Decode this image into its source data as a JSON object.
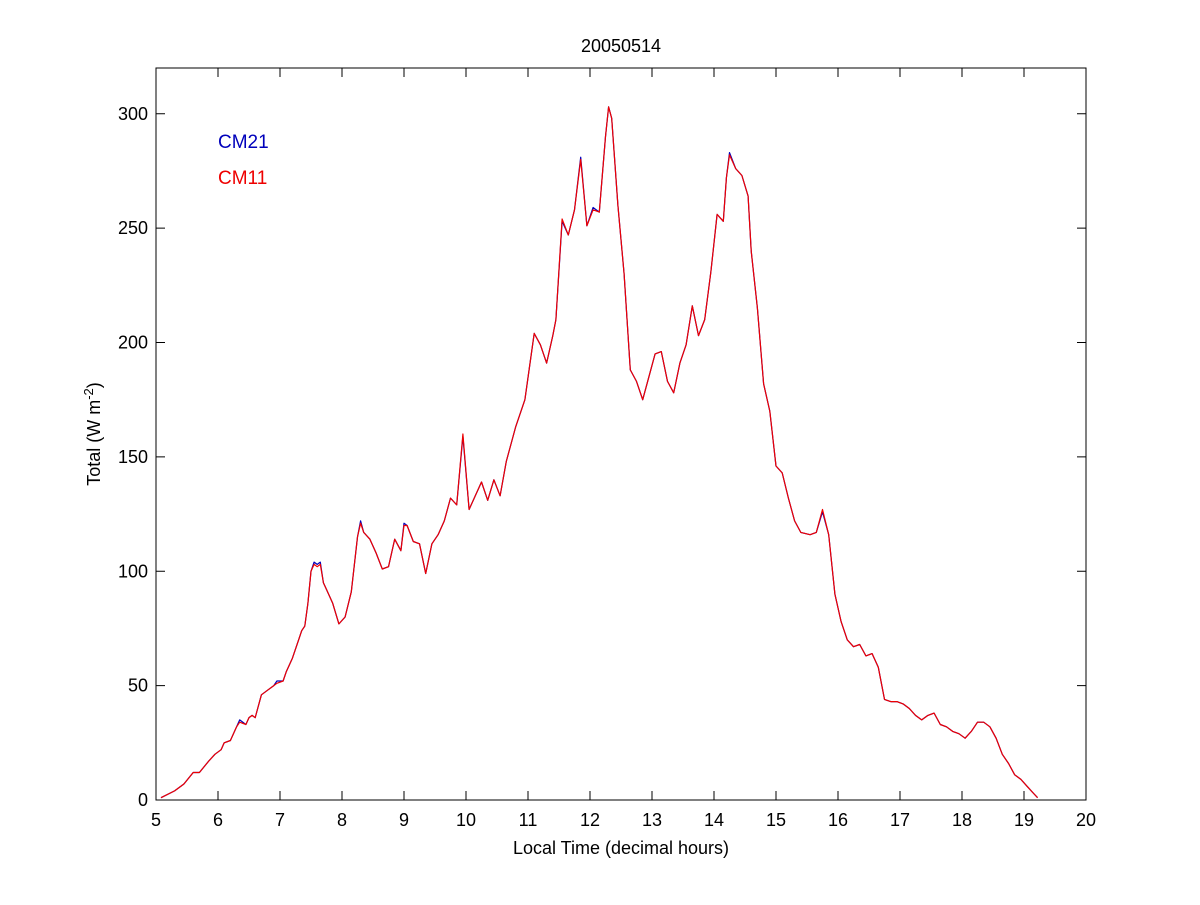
{
  "chart_data": {
    "type": "line",
    "title": "20050514",
    "xlabel": "Local Time (decimal hours)",
    "ylabel": {
      "prefix": "Total (W m",
      "superscript": "-2",
      "suffix": ")"
    },
    "xlim": [
      5,
      20
    ],
    "ylim": [
      0,
      320
    ],
    "xticks": [
      5,
      6,
      7,
      8,
      9,
      10,
      11,
      12,
      13,
      14,
      15,
      16,
      17,
      18,
      19,
      20
    ],
    "yticks": [
      0,
      50,
      100,
      150,
      200,
      250,
      300
    ],
    "legend_position": "top-left",
    "grid": false,
    "series": [
      {
        "name": "CM21",
        "color": "#0000bb",
        "points": [
          [
            5.08,
            1
          ],
          [
            5.3,
            4
          ],
          [
            5.45,
            7
          ],
          [
            5.6,
            12
          ],
          [
            5.7,
            12
          ],
          [
            5.85,
            17
          ],
          [
            5.95,
            20
          ],
          [
            6.05,
            22
          ],
          [
            6.1,
            25
          ],
          [
            6.2,
            26
          ],
          [
            6.3,
            32
          ],
          [
            6.35,
            35
          ],
          [
            6.45,
            33
          ],
          [
            6.5,
            36
          ],
          [
            6.55,
            37
          ],
          [
            6.6,
            36
          ],
          [
            6.7,
            46
          ],
          [
            6.8,
            48
          ],
          [
            6.9,
            50
          ],
          [
            6.95,
            52
          ],
          [
            7.05,
            52
          ],
          [
            7.1,
            56
          ],
          [
            7.2,
            62
          ],
          [
            7.3,
            70
          ],
          [
            7.35,
            74
          ],
          [
            7.4,
            76
          ],
          [
            7.45,
            86
          ],
          [
            7.5,
            100
          ],
          [
            7.55,
            104
          ],
          [
            7.6,
            103
          ],
          [
            7.65,
            104
          ],
          [
            7.7,
            95
          ],
          [
            7.75,
            92
          ],
          [
            7.85,
            86
          ],
          [
            7.95,
            77
          ],
          [
            8.05,
            80
          ],
          [
            8.15,
            91
          ],
          [
            8.25,
            115
          ],
          [
            8.3,
            122
          ],
          [
            8.35,
            117
          ],
          [
            8.45,
            114
          ],
          [
            8.55,
            108
          ],
          [
            8.65,
            101
          ],
          [
            8.75,
            102
          ],
          [
            8.85,
            114
          ],
          [
            8.95,
            109
          ],
          [
            9.0,
            121
          ],
          [
            9.05,
            120
          ],
          [
            9.15,
            113
          ],
          [
            9.25,
            112
          ],
          [
            9.35,
            99
          ],
          [
            9.45,
            112
          ],
          [
            9.55,
            116
          ],
          [
            9.65,
            122
          ],
          [
            9.75,
            132
          ],
          [
            9.85,
            129
          ],
          [
            9.95,
            159
          ],
          [
            10.05,
            127
          ],
          [
            10.15,
            133
          ],
          [
            10.25,
            139
          ],
          [
            10.35,
            131
          ],
          [
            10.45,
            140
          ],
          [
            10.55,
            133
          ],
          [
            10.65,
            148
          ],
          [
            10.8,
            163
          ],
          [
            10.95,
            175
          ],
          [
            11.1,
            204
          ],
          [
            11.2,
            199
          ],
          [
            11.3,
            191
          ],
          [
            11.4,
            203
          ],
          [
            11.45,
            210
          ],
          [
            11.55,
            253
          ],
          [
            11.65,
            247
          ],
          [
            11.75,
            258
          ],
          [
            11.85,
            281
          ],
          [
            11.95,
            251
          ],
          [
            12.05,
            259
          ],
          [
            12.15,
            257
          ],
          [
            12.25,
            290
          ],
          [
            12.3,
            303
          ],
          [
            12.35,
            298
          ],
          [
            12.45,
            260
          ],
          [
            12.55,
            230
          ],
          [
            12.65,
            188
          ],
          [
            12.75,
            183
          ],
          [
            12.85,
            175
          ],
          [
            12.95,
            185
          ],
          [
            13.05,
            195
          ],
          [
            13.15,
            196
          ],
          [
            13.25,
            183
          ],
          [
            13.35,
            178
          ],
          [
            13.45,
            191
          ],
          [
            13.55,
            199
          ],
          [
            13.65,
            216
          ],
          [
            13.75,
            203
          ],
          [
            13.85,
            210
          ],
          [
            13.95,
            231
          ],
          [
            14.05,
            256
          ],
          [
            14.15,
            253
          ],
          [
            14.2,
            272
          ],
          [
            14.25,
            283
          ],
          [
            14.35,
            276
          ],
          [
            14.45,
            273
          ],
          [
            14.55,
            264
          ],
          [
            14.6,
            240
          ],
          [
            14.7,
            215
          ],
          [
            14.8,
            182
          ],
          [
            14.9,
            170
          ],
          [
            15.0,
            146
          ],
          [
            15.1,
            143
          ],
          [
            15.2,
            132
          ],
          [
            15.3,
            122
          ],
          [
            15.4,
            117
          ],
          [
            15.55,
            116
          ],
          [
            15.65,
            117
          ],
          [
            15.75,
            126
          ],
          [
            15.85,
            116
          ],
          [
            15.95,
            90
          ],
          [
            16.05,
            78
          ],
          [
            16.15,
            70
          ],
          [
            16.25,
            67
          ],
          [
            16.35,
            68
          ],
          [
            16.45,
            63
          ],
          [
            16.55,
            64
          ],
          [
            16.65,
            58
          ],
          [
            16.75,
            44
          ],
          [
            16.85,
            43
          ],
          [
            16.95,
            43
          ],
          [
            17.05,
            42
          ],
          [
            17.15,
            40
          ],
          [
            17.25,
            37
          ],
          [
            17.35,
            35
          ],
          [
            17.45,
            37
          ],
          [
            17.55,
            38
          ],
          [
            17.65,
            33
          ],
          [
            17.75,
            32
          ],
          [
            17.85,
            30
          ],
          [
            17.95,
            29
          ],
          [
            18.05,
            27
          ],
          [
            18.15,
            30
          ],
          [
            18.25,
            34
          ],
          [
            18.35,
            34
          ],
          [
            18.45,
            32
          ],
          [
            18.55,
            27
          ],
          [
            18.65,
            20
          ],
          [
            18.75,
            16
          ],
          [
            18.85,
            11
          ],
          [
            18.95,
            9
          ],
          [
            19.05,
            6
          ],
          [
            19.15,
            3
          ],
          [
            19.22,
            1
          ]
        ]
      },
      {
        "name": "CM11",
        "color": "#ee0000",
        "points": [
          [
            5.08,
            1
          ],
          [
            5.3,
            4
          ],
          [
            5.45,
            7
          ],
          [
            5.6,
            12
          ],
          [
            5.7,
            12
          ],
          [
            5.85,
            17
          ],
          [
            5.95,
            20
          ],
          [
            6.05,
            22
          ],
          [
            6.1,
            25
          ],
          [
            6.2,
            26
          ],
          [
            6.3,
            32
          ],
          [
            6.35,
            34
          ],
          [
            6.45,
            33
          ],
          [
            6.5,
            36
          ],
          [
            6.55,
            37
          ],
          [
            6.6,
            36
          ],
          [
            6.7,
            46
          ],
          [
            6.8,
            48
          ],
          [
            6.9,
            50
          ],
          [
            6.95,
            51
          ],
          [
            7.05,
            52
          ],
          [
            7.1,
            56
          ],
          [
            7.2,
            62
          ],
          [
            7.3,
            70
          ],
          [
            7.35,
            74
          ],
          [
            7.4,
            76
          ],
          [
            7.45,
            86
          ],
          [
            7.5,
            100
          ],
          [
            7.55,
            103
          ],
          [
            7.6,
            102
          ],
          [
            7.65,
            103
          ],
          [
            7.7,
            95
          ],
          [
            7.75,
            92
          ],
          [
            7.85,
            86
          ],
          [
            7.95,
            77
          ],
          [
            8.05,
            80
          ],
          [
            8.15,
            91
          ],
          [
            8.25,
            115
          ],
          [
            8.3,
            121
          ],
          [
            8.35,
            117
          ],
          [
            8.45,
            114
          ],
          [
            8.55,
            108
          ],
          [
            8.65,
            101
          ],
          [
            8.75,
            102
          ],
          [
            8.85,
            114
          ],
          [
            8.95,
            109
          ],
          [
            9.0,
            120
          ],
          [
            9.05,
            120
          ],
          [
            9.15,
            113
          ],
          [
            9.25,
            112
          ],
          [
            9.35,
            99
          ],
          [
            9.45,
            112
          ],
          [
            9.55,
            116
          ],
          [
            9.65,
            122
          ],
          [
            9.75,
            132
          ],
          [
            9.85,
            129
          ],
          [
            9.95,
            160
          ],
          [
            10.05,
            127
          ],
          [
            10.15,
            133
          ],
          [
            10.25,
            139
          ],
          [
            10.35,
            131
          ],
          [
            10.45,
            140
          ],
          [
            10.55,
            133
          ],
          [
            10.65,
            148
          ],
          [
            10.8,
            163
          ],
          [
            10.95,
            175
          ],
          [
            11.1,
            204
          ],
          [
            11.2,
            199
          ],
          [
            11.3,
            191
          ],
          [
            11.4,
            203
          ],
          [
            11.45,
            210
          ],
          [
            11.55,
            254
          ],
          [
            11.65,
            247
          ],
          [
            11.75,
            258
          ],
          [
            11.85,
            280
          ],
          [
            11.95,
            251
          ],
          [
            12.05,
            258
          ],
          [
            12.15,
            257
          ],
          [
            12.25,
            290
          ],
          [
            12.3,
            303
          ],
          [
            12.35,
            298
          ],
          [
            12.45,
            260
          ],
          [
            12.55,
            230
          ],
          [
            12.65,
            188
          ],
          [
            12.75,
            183
          ],
          [
            12.85,
            175
          ],
          [
            12.95,
            185
          ],
          [
            13.05,
            195
          ],
          [
            13.15,
            196
          ],
          [
            13.25,
            183
          ],
          [
            13.35,
            178
          ],
          [
            13.45,
            191
          ],
          [
            13.55,
            199
          ],
          [
            13.65,
            216
          ],
          [
            13.75,
            203
          ],
          [
            13.85,
            210
          ],
          [
            13.95,
            231
          ],
          [
            14.05,
            256
          ],
          [
            14.15,
            253
          ],
          [
            14.2,
            272
          ],
          [
            14.25,
            282
          ],
          [
            14.35,
            276
          ],
          [
            14.45,
            273
          ],
          [
            14.55,
            264
          ],
          [
            14.6,
            240
          ],
          [
            14.7,
            215
          ],
          [
            14.8,
            182
          ],
          [
            14.9,
            170
          ],
          [
            15.0,
            146
          ],
          [
            15.1,
            143
          ],
          [
            15.2,
            132
          ],
          [
            15.3,
            122
          ],
          [
            15.4,
            117
          ],
          [
            15.55,
            116
          ],
          [
            15.65,
            117
          ],
          [
            15.75,
            127
          ],
          [
            15.85,
            116
          ],
          [
            15.95,
            90
          ],
          [
            16.05,
            78
          ],
          [
            16.15,
            70
          ],
          [
            16.25,
            67
          ],
          [
            16.35,
            68
          ],
          [
            16.45,
            63
          ],
          [
            16.55,
            64
          ],
          [
            16.65,
            58
          ],
          [
            16.75,
            44
          ],
          [
            16.85,
            43
          ],
          [
            16.95,
            43
          ],
          [
            17.05,
            42
          ],
          [
            17.15,
            40
          ],
          [
            17.25,
            37
          ],
          [
            17.35,
            35
          ],
          [
            17.45,
            37
          ],
          [
            17.55,
            38
          ],
          [
            17.65,
            33
          ],
          [
            17.75,
            32
          ],
          [
            17.85,
            30
          ],
          [
            17.95,
            29
          ],
          [
            18.05,
            27
          ],
          [
            18.15,
            30
          ],
          [
            18.25,
            34
          ],
          [
            18.35,
            34
          ],
          [
            18.45,
            32
          ],
          [
            18.55,
            27
          ],
          [
            18.65,
            20
          ],
          [
            18.75,
            16
          ],
          [
            18.85,
            11
          ],
          [
            18.95,
            9
          ],
          [
            19.05,
            6
          ],
          [
            19.15,
            3
          ],
          [
            19.22,
            1
          ]
        ]
      }
    ]
  }
}
